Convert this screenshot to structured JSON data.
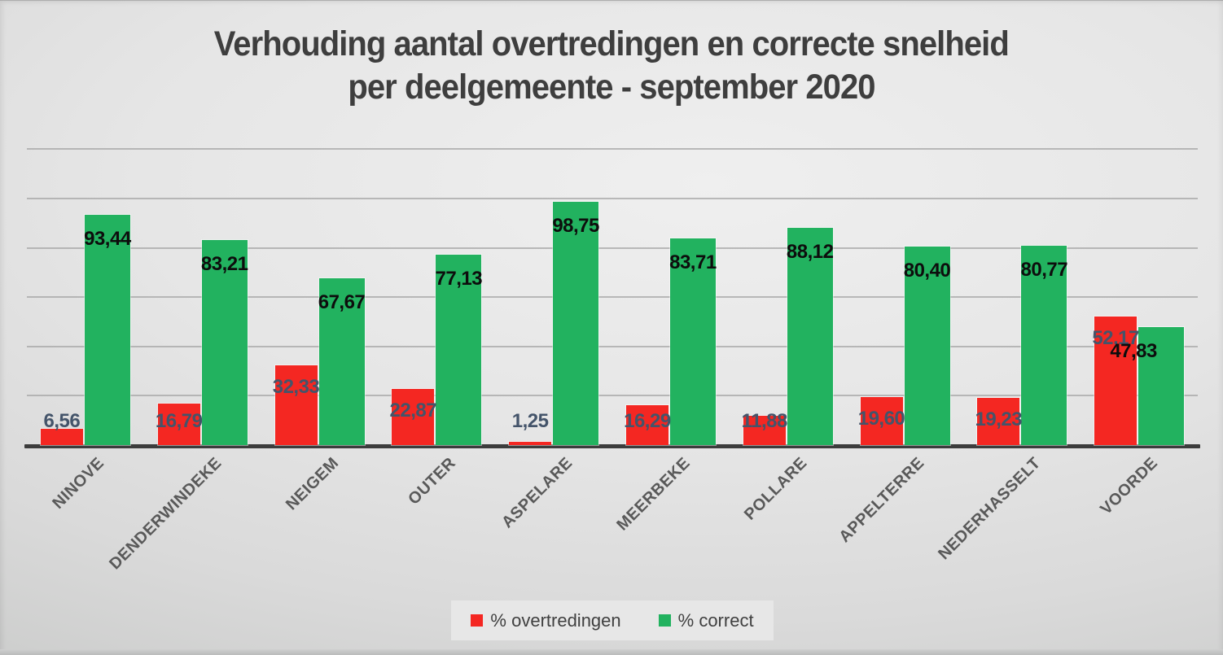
{
  "header": {
    "title_line1": "Verhouding aantal overtredingen en correcte snelheid",
    "title_line2": "per deelgemeente - september 2020"
  },
  "chart_data": {
    "type": "bar",
    "title": "Verhouding aantal overtredingen en correcte snelheid per deelgemeente - september 2020",
    "categories": [
      "NINOVE",
      "DENDERWINDEKE",
      "NEIGEM",
      "OUTER",
      "ASPELARE",
      "MEERBEKE",
      "POLLARE",
      "APPELTERRE",
      "NEDERHASSELT",
      "VOORDE"
    ],
    "series": [
      {
        "name": "% overtredingen",
        "color": "#f42722",
        "label_color": "#44546a",
        "values": [
          6.56,
          16.79,
          32.33,
          22.87,
          1.25,
          16.29,
          11.88,
          19.6,
          19.23,
          52.17
        ],
        "labels": [
          "6,56",
          "16,79",
          "32,33",
          "22,87",
          "1,25",
          "16,29",
          "11,88",
          "19,60",
          "19,23",
          "52,17"
        ]
      },
      {
        "name": "% correct",
        "color": "#22b25f",
        "label_color": "#0d0d0d",
        "values": [
          93.44,
          83.21,
          67.67,
          77.13,
          98.75,
          83.71,
          88.12,
          80.4,
          80.77,
          47.83
        ],
        "labels": [
          "93,44",
          "83,21",
          "67,67",
          "77,13",
          "98,75",
          "83,71",
          "88,12",
          "80,40",
          "80,77",
          "47,83"
        ]
      }
    ],
    "ylim": [
      0,
      120
    ],
    "gridline_step": 20,
    "grid": "horizontal",
    "y_axis_labels_visible": false,
    "legend_position": "bottom",
    "decimal_separator": ","
  }
}
